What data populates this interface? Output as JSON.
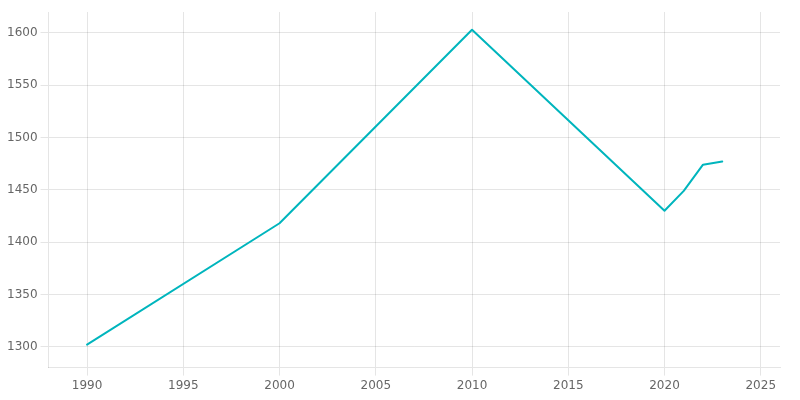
{
  "chart_data": {
    "type": "line",
    "x": [
      1990,
      2000,
      2010,
      2020,
      2021,
      2022,
      2023
    ],
    "values": [
      1302,
      1418,
      1603,
      1430,
      1449,
      1474,
      1477
    ],
    "color": "#00B5BD",
    "xlim": [
      1988,
      2026
    ],
    "ylim": [
      1280,
      1620
    ],
    "xticks": [
      1990,
      1995,
      2000,
      2005,
      2010,
      2015,
      2020,
      2025
    ],
    "yticks": [
      1300,
      1350,
      1400,
      1450,
      1500,
      1550,
      1600
    ],
    "grid": true
  }
}
